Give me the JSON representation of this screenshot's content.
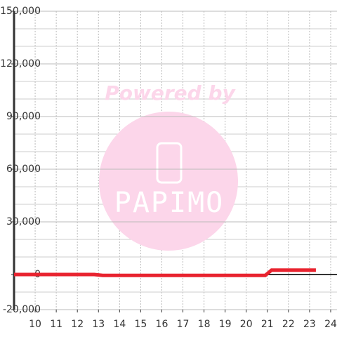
{
  "chart_data": {
    "type": "line",
    "x": [
      9,
      12.8,
      13.2,
      20.9,
      21.2,
      23.3
    ],
    "series": [
      {
        "color": "#e8232f",
        "values": [
          0,
          0,
          -500,
          -500,
          2500,
          2500
        ]
      }
    ],
    "xlim": [
      9,
      24.3
    ],
    "xticks": [
      10,
      11,
      12,
      13,
      14,
      15,
      16,
      17,
      18,
      19,
      20,
      21,
      22,
      23,
      24
    ],
    "ylim": [
      -20000,
      150000
    ],
    "yticks": [
      {
        "value": -20000,
        "label": "-20,000"
      },
      0,
      {
        "value": 30000,
        "label": "30,000"
      },
      {
        "value": 60000,
        "label": "60,000"
      },
      {
        "value": 90000,
        "label": "90,000"
      },
      {
        "value": 120000,
        "label": "120,000"
      },
      {
        "value": 150000,
        "label": "150,000"
      }
    ],
    "y_minor_ticks": [
      -10000,
      10000,
      20000,
      40000,
      50000,
      70000,
      80000,
      100000,
      110000,
      130000,
      140000
    ],
    "grid": true,
    "watermark": {
      "text": "Powered by",
      "logo_text": "PAPIMO"
    }
  }
}
